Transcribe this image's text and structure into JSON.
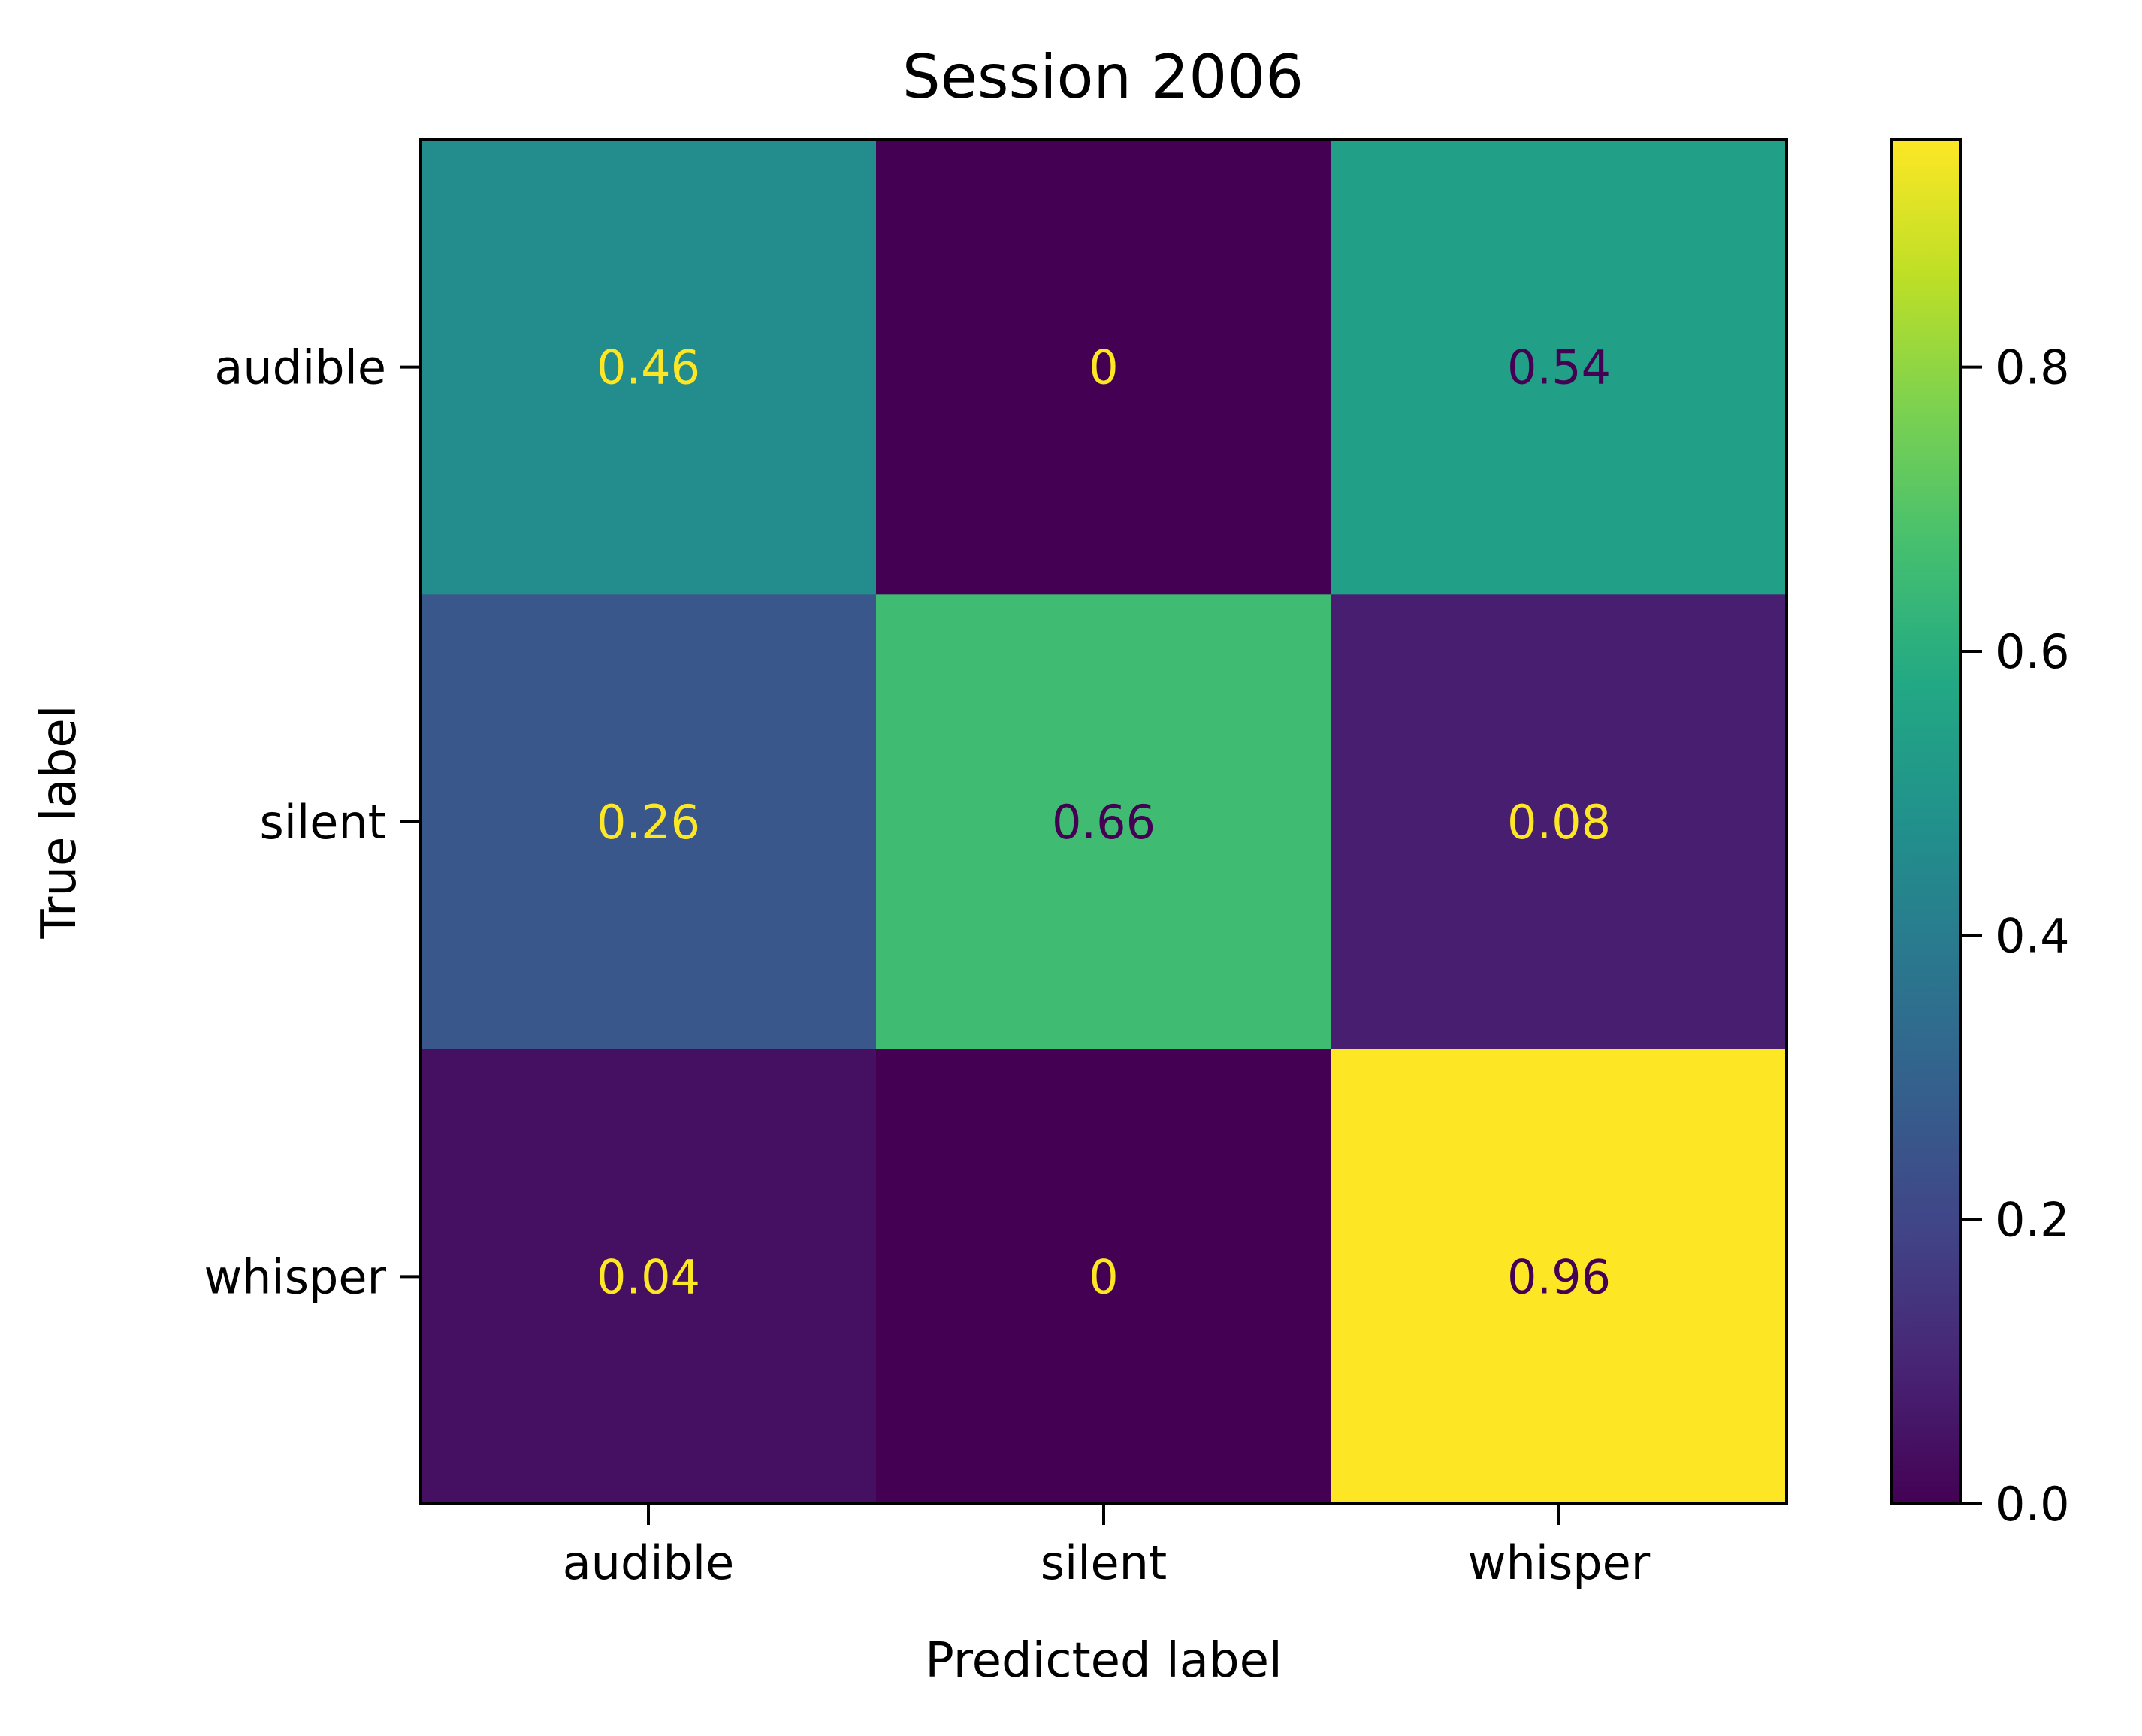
{
  "chart_data": {
    "type": "heatmap",
    "title": "Session 2006",
    "xlabel": "Predicted label",
    "ylabel": "True label",
    "x_categories": [
      "audible",
      "silent",
      "whisper"
    ],
    "y_categories": [
      "audible",
      "silent",
      "whisper"
    ],
    "values": [
      [
        0.46,
        0,
        0.54
      ],
      [
        0.26,
        0.66,
        0.08
      ],
      [
        0.04,
        0,
        0.96
      ]
    ],
    "cell_labels": [
      [
        "0.46",
        "0",
        "0.54"
      ],
      [
        "0.26",
        "0.66",
        "0.08"
      ],
      [
        "0.04",
        "0",
        "0.96"
      ]
    ],
    "colormap": "viridis",
    "colorbar": {
      "range": [
        0,
        0.96
      ],
      "ticks": [
        0.0,
        0.2,
        0.4,
        0.6,
        0.8
      ],
      "tick_labels": [
        "0.0",
        "0.2",
        "0.4",
        "0.6",
        "0.8"
      ]
    },
    "grid": false
  }
}
